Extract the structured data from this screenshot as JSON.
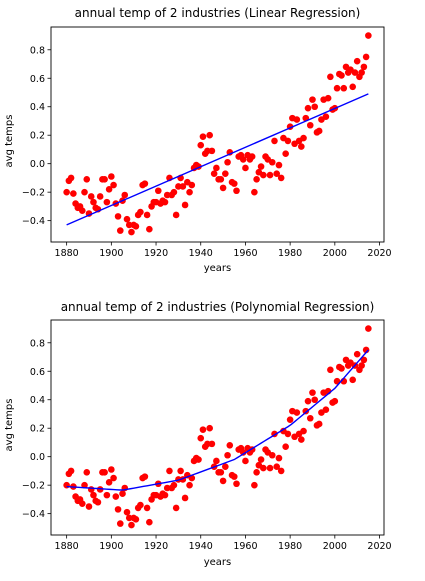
{
  "chart_data": [
    {
      "type": "scatter",
      "title": "annual temp of 2 industries (Linear Regression)",
      "xlabel": "years",
      "ylabel": "avg temps",
      "xlim": [
        1873,
        2022
      ],
      "ylim": [
        -0.55,
        0.96
      ],
      "xticks": [
        1880,
        1900,
        1920,
        1940,
        1960,
        1980,
        2000,
        2020
      ],
      "yticks": [
        -0.4,
        -0.2,
        0.0,
        0.2,
        0.4,
        0.6,
        0.8
      ],
      "xtick_labels": [
        "1880",
        "1900",
        "1920",
        "1940",
        "1960",
        "1980",
        "2000",
        "2020"
      ],
      "ytick_labels": [
        "−0.4",
        "−0.2",
        "0.0",
        "0.2",
        "0.4",
        "0.6",
        "0.8"
      ],
      "point_color": "#ff0000",
      "fit_color": "#0000ff",
      "fit": {
        "type": "linear",
        "x": [
          1880,
          2015
        ],
        "y": [
          -0.43,
          0.49
        ]
      },
      "x": [
        1880,
        1881,
        1882,
        1883,
        1884,
        1885,
        1886,
        1887,
        1888,
        1889,
        1890,
        1891,
        1892,
        1893,
        1894,
        1895,
        1896,
        1897,
        1898,
        1899,
        1900,
        1901,
        1902,
        1903,
        1904,
        1905,
        1906,
        1907,
        1908,
        1909,
        1910,
        1911,
        1912,
        1913,
        1914,
        1915,
        1916,
        1917,
        1918,
        1919,
        1920,
        1921,
        1922,
        1923,
        1924,
        1925,
        1926,
        1927,
        1928,
        1929,
        1930,
        1931,
        1932,
        1933,
        1934,
        1935,
        1936,
        1937,
        1938,
        1939,
        1940,
        1941,
        1942,
        1943,
        1944,
        1945,
        1946,
        1947,
        1948,
        1949,
        1950,
        1951,
        1952,
        1953,
        1954,
        1955,
        1956,
        1957,
        1958,
        1959,
        1960,
        1961,
        1962,
        1963,
        1964,
        1965,
        1966,
        1967,
        1968,
        1969,
        1970,
        1971,
        1972,
        1973,
        1974,
        1975,
        1976,
        1977,
        1978,
        1979,
        1980,
        1981,
        1982,
        1983,
        1984,
        1985,
        1986,
        1987,
        1988,
        1989,
        1990,
        1991,
        1992,
        1993,
        1994,
        1995,
        1996,
        1997,
        1998,
        1999,
        2000,
        2001,
        2002,
        2003,
        2004,
        2005,
        2006,
        2007,
        2008,
        2009,
        2010,
        2011,
        2012,
        2013,
        2014,
        2015
      ],
      "y": [
        -0.2,
        -0.12,
        -0.1,
        -0.21,
        -0.28,
        -0.31,
        -0.3,
        -0.33,
        -0.2,
        -0.11,
        -0.35,
        -0.23,
        -0.27,
        -0.31,
        -0.32,
        -0.23,
        -0.11,
        -0.11,
        -0.27,
        -0.18,
        -0.09,
        -0.15,
        -0.28,
        -0.37,
        -0.47,
        -0.26,
        -0.22,
        -0.39,
        -0.43,
        -0.48,
        -0.43,
        -0.44,
        -0.36,
        -0.34,
        -0.15,
        -0.14,
        -0.36,
        -0.46,
        -0.3,
        -0.27,
        -0.27,
        -0.19,
        -0.28,
        -0.26,
        -0.27,
        -0.22,
        -0.1,
        -0.22,
        -0.2,
        -0.36,
        -0.16,
        -0.1,
        -0.16,
        -0.29,
        -0.13,
        -0.2,
        -0.15,
        -0.03,
        -0.01,
        -0.02,
        0.13,
        0.19,
        0.07,
        0.09,
        0.2,
        0.09,
        -0.07,
        -0.03,
        -0.11,
        -0.11,
        -0.17,
        -0.07,
        0.01,
        0.08,
        -0.13,
        -0.14,
        -0.19,
        0.05,
        0.06,
        0.03,
        -0.03,
        0.06,
        0.03,
        0.05,
        -0.2,
        -0.11,
        -0.06,
        -0.02,
        -0.08,
        0.05,
        0.03,
        -0.08,
        0.01,
        0.16,
        -0.07,
        -0.01,
        -0.1,
        0.18,
        0.07,
        0.16,
        0.26,
        0.32,
        0.14,
        0.31,
        0.16,
        0.12,
        0.18,
        0.32,
        0.39,
        0.27,
        0.45,
        0.4,
        0.22,
        0.23,
        0.31,
        0.45,
        0.33,
        0.46,
        0.61,
        0.38,
        0.39,
        0.53,
        0.63,
        0.62,
        0.53,
        0.68,
        0.64,
        0.66,
        0.54,
        0.64,
        0.72,
        0.61,
        0.64,
        0.68,
        0.75,
        0.9
      ]
    },
    {
      "type": "scatter",
      "title": "annual temp of 2 industries (Polynomial Regression)",
      "xlabel": "years",
      "ylabel": "avg temps",
      "xlim": [
        1873,
        2022
      ],
      "ylim": [
        -0.55,
        0.96
      ],
      "xticks": [
        1880,
        1900,
        1920,
        1940,
        1960,
        1980,
        2000,
        2020
      ],
      "yticks": [
        -0.4,
        -0.2,
        0.0,
        0.2,
        0.4,
        0.6,
        0.8
      ],
      "xtick_labels": [
        "1880",
        "1900",
        "1920",
        "1940",
        "1960",
        "1980",
        "2000",
        "2020"
      ],
      "ytick_labels": [
        "−0.4",
        "−0.2",
        "0.0",
        "0.2",
        "0.4",
        "0.6",
        "0.8"
      ],
      "point_color": "#ff0000",
      "fit_color": "#0000ff",
      "fit": {
        "type": "polynomial",
        "x": [
          1880,
          1905,
          1930,
          1955,
          1980,
          2000,
          2015
        ],
        "y": [
          -0.21,
          -0.235,
          -0.165,
          -0.02,
          0.22,
          0.48,
          0.75
        ]
      },
      "x": [
        1880,
        1881,
        1882,
        1883,
        1884,
        1885,
        1886,
        1887,
        1888,
        1889,
        1890,
        1891,
        1892,
        1893,
        1894,
        1895,
        1896,
        1897,
        1898,
        1899,
        1900,
        1901,
        1902,
        1903,
        1904,
        1905,
        1906,
        1907,
        1908,
        1909,
        1910,
        1911,
        1912,
        1913,
        1914,
        1915,
        1916,
        1917,
        1918,
        1919,
        1920,
        1921,
        1922,
        1923,
        1924,
        1925,
        1926,
        1927,
        1928,
        1929,
        1930,
        1931,
        1932,
        1933,
        1934,
        1935,
        1936,
        1937,
        1938,
        1939,
        1940,
        1941,
        1942,
        1943,
        1944,
        1945,
        1946,
        1947,
        1948,
        1949,
        1950,
        1951,
        1952,
        1953,
        1954,
        1955,
        1956,
        1957,
        1958,
        1959,
        1960,
        1961,
        1962,
        1963,
        1964,
        1965,
        1966,
        1967,
        1968,
        1969,
        1970,
        1971,
        1972,
        1973,
        1974,
        1975,
        1976,
        1977,
        1978,
        1979,
        1980,
        1981,
        1982,
        1983,
        1984,
        1985,
        1986,
        1987,
        1988,
        1989,
        1990,
        1991,
        1992,
        1993,
        1994,
        1995,
        1996,
        1997,
        1998,
        1999,
        2000,
        2001,
        2002,
        2003,
        2004,
        2005,
        2006,
        2007,
        2008,
        2009,
        2010,
        2011,
        2012,
        2013,
        2014,
        2015
      ],
      "y": [
        -0.2,
        -0.12,
        -0.1,
        -0.21,
        -0.28,
        -0.31,
        -0.3,
        -0.33,
        -0.2,
        -0.11,
        -0.35,
        -0.23,
        -0.27,
        -0.31,
        -0.32,
        -0.23,
        -0.11,
        -0.11,
        -0.27,
        -0.18,
        -0.09,
        -0.15,
        -0.28,
        -0.37,
        -0.47,
        -0.26,
        -0.22,
        -0.39,
        -0.43,
        -0.48,
        -0.43,
        -0.44,
        -0.36,
        -0.34,
        -0.15,
        -0.14,
        -0.36,
        -0.46,
        -0.3,
        -0.27,
        -0.27,
        -0.19,
        -0.28,
        -0.26,
        -0.27,
        -0.22,
        -0.1,
        -0.22,
        -0.2,
        -0.36,
        -0.16,
        -0.1,
        -0.16,
        -0.29,
        -0.13,
        -0.2,
        -0.15,
        -0.03,
        -0.01,
        -0.02,
        0.13,
        0.19,
        0.07,
        0.09,
        0.2,
        0.09,
        -0.07,
        -0.03,
        -0.11,
        -0.11,
        -0.17,
        -0.07,
        0.01,
        0.08,
        -0.13,
        -0.14,
        -0.19,
        0.05,
        0.06,
        0.03,
        -0.03,
        0.06,
        0.03,
        0.05,
        -0.2,
        -0.11,
        -0.06,
        -0.02,
        -0.08,
        0.05,
        0.03,
        -0.08,
        0.01,
        0.16,
        -0.07,
        -0.01,
        -0.1,
        0.18,
        0.07,
        0.16,
        0.26,
        0.32,
        0.14,
        0.31,
        0.16,
        0.12,
        0.18,
        0.32,
        0.39,
        0.27,
        0.45,
        0.4,
        0.22,
        0.23,
        0.31,
        0.45,
        0.33,
        0.46,
        0.61,
        0.38,
        0.39,
        0.53,
        0.63,
        0.62,
        0.53,
        0.68,
        0.64,
        0.66,
        0.54,
        0.64,
        0.72,
        0.61,
        0.64,
        0.68,
        0.75,
        0.9
      ]
    }
  ]
}
